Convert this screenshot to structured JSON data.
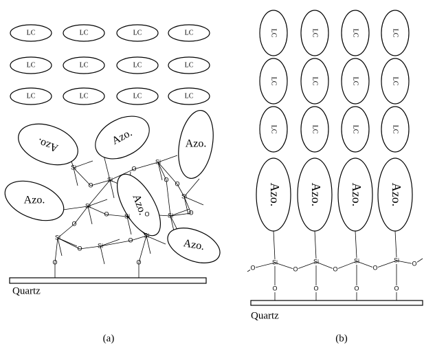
{
  "panel_a": {
    "lc": [
      "LC",
      "LC",
      "LC",
      "LC",
      "LC",
      "LC",
      "LC",
      "LC",
      "LC",
      "LC",
      "LC",
      "LC"
    ],
    "azo": [
      "Azo.",
      "Azo.",
      "Azo.",
      "Azo.",
      "Azo.",
      "Azo."
    ],
    "si": [
      "Si",
      "Si",
      "Si",
      "Si",
      "Si",
      "Si",
      "Si",
      "Si",
      "Si",
      "Si"
    ],
    "o": [
      "O",
      "O",
      "O",
      "O",
      "O",
      "O",
      "O",
      "O",
      "O",
      "O",
      "O",
      "O"
    ],
    "substrate": "Quartz",
    "caption": "(a)"
  },
  "panel_b": {
    "lc": [
      "LC",
      "LC",
      "LC",
      "LC",
      "LC",
      "LC",
      "LC",
      "LC",
      "LC",
      "LC",
      "LC",
      "LC"
    ],
    "azo": [
      "Azo.",
      "Azo.",
      "Azo.",
      "Azo."
    ],
    "si": [
      "Si",
      "Si",
      "Si",
      "Si"
    ],
    "o": [
      "O",
      "O",
      "O",
      "O",
      "O",
      "O",
      "O",
      "O",
      "O"
    ],
    "substrate": "Quartz",
    "caption": "(b)"
  }
}
